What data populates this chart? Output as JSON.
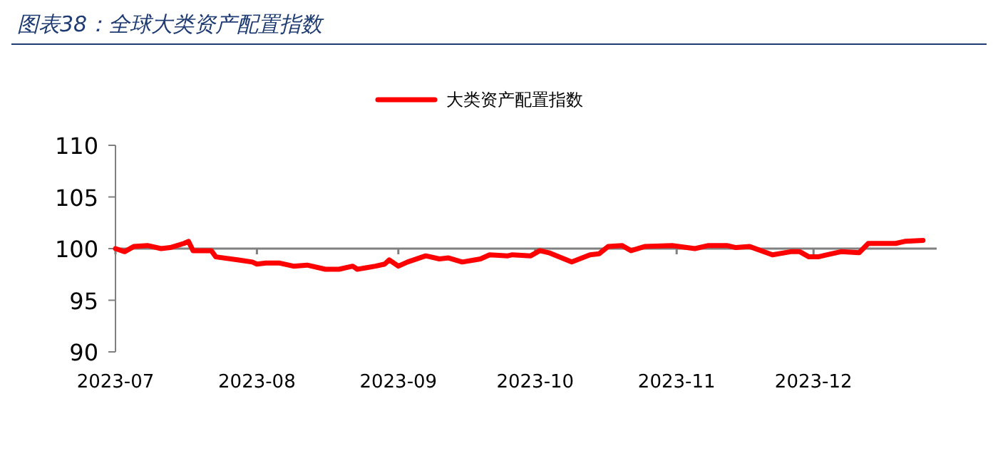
{
  "chart_data": {
    "type": "line",
    "title": "图表38：全球大类资产配置指数",
    "x": [
      "2023-07-01",
      "2023-07-03",
      "2023-07-05",
      "2023-07-08",
      "2023-07-11",
      "2023-07-13",
      "2023-07-16",
      "2023-07-17",
      "2023-07-18",
      "2023-07-22",
      "2023-07-23",
      "2023-07-28",
      "2023-07-31",
      "2023-08-01",
      "2023-08-03",
      "2023-08-06",
      "2023-08-09",
      "2023-08-12",
      "2023-08-16",
      "2023-08-19",
      "2023-08-22",
      "2023-08-23",
      "2023-08-27",
      "2023-08-29",
      "2023-08-30",
      "2023-09-01",
      "2023-09-03",
      "2023-09-07",
      "2023-09-10",
      "2023-09-12",
      "2023-09-15",
      "2023-09-19",
      "2023-09-21",
      "2023-09-25",
      "2023-09-26",
      "2023-09-30",
      "2023-10-02",
      "2023-10-04",
      "2023-10-09",
      "2023-10-13",
      "2023-10-15",
      "2023-10-17",
      "2023-10-20",
      "2023-10-22",
      "2023-10-25",
      "2023-10-31",
      "2023-11-05",
      "2023-11-08",
      "2023-11-12",
      "2023-11-14",
      "2023-11-17",
      "2023-11-22",
      "2023-11-26",
      "2023-11-28",
      "2023-11-30",
      "2023-12-02",
      "2023-12-04",
      "2023-12-07",
      "2023-12-11",
      "2023-12-13",
      "2023-12-17",
      "2023-12-19",
      "2023-12-21",
      "2023-12-25"
    ],
    "series": [
      {
        "name": "大类资产配置指数",
        "color": "#ff0000",
        "values": [
          100,
          99.7,
          100.2,
          100.3,
          100,
          100.1,
          100.5,
          100.7,
          99.8,
          99.8,
          99.2,
          98.9,
          98.7,
          98.5,
          98.6,
          98.6,
          98.3,
          98.4,
          98.0,
          98.0,
          98.3,
          98.0,
          98.3,
          98.5,
          98.9,
          98.3,
          98.7,
          99.3,
          99.0,
          99.1,
          98.7,
          99.0,
          99.4,
          99.3,
          99.4,
          99.3,
          99.8,
          99.6,
          98.7,
          99.4,
          99.5,
          100.2,
          100.3,
          99.8,
          100.2,
          100.3,
          100.0,
          100.3,
          100.3,
          100.1,
          100.2,
          99.4,
          99.7,
          99.7,
          99.2,
          99.2,
          99.4,
          99.7,
          99.6,
          100.5,
          100.5,
          100.5,
          100.7,
          100.8
        ]
      }
    ],
    "xlim": [
      "2023-07-01",
      "2023-12-28"
    ],
    "xticks": [
      {
        "value": "2023-07-01",
        "label": "2023-07"
      },
      {
        "value": "2023-08-01",
        "label": "2023-08"
      },
      {
        "value": "2023-09-01",
        "label": "2023-09"
      },
      {
        "value": "2023-10-01",
        "label": "2023-10"
      },
      {
        "value": "2023-11-01",
        "label": "2023-11"
      },
      {
        "value": "2023-12-01",
        "label": "2023-12"
      }
    ],
    "ylim": [
      90,
      110
    ],
    "yticks": [
      90,
      95,
      100,
      105,
      110
    ],
    "ref_lines": [
      {
        "axis": "y",
        "value": 100,
        "color": "#808080"
      }
    ],
    "grid": false,
    "legend": "top",
    "marker": "none",
    "line_style": "solid"
  }
}
